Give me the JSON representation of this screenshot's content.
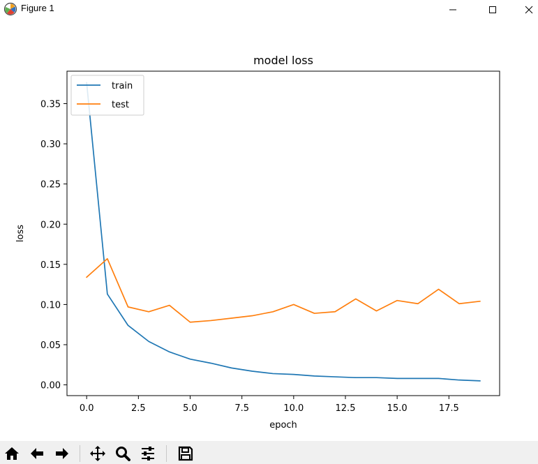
{
  "window": {
    "title": "Figure 1",
    "controls": [
      "minimize",
      "maximize",
      "close"
    ]
  },
  "chart_data": {
    "type": "line",
    "title": "model loss",
    "xlabel": "epoch",
    "ylabel": "loss",
    "xlim": [
      -0.95,
      19.95
    ],
    "ylim": [
      -0.0134,
      0.3904
    ],
    "xticks": [
      0.0,
      2.5,
      5.0,
      7.5,
      10.0,
      12.5,
      15.0,
      17.5
    ],
    "xtick_labels": [
      "0.0",
      "2.5",
      "5.0",
      "7.5",
      "10.0",
      "12.5",
      "15.0",
      "17.5"
    ],
    "yticks": [
      0.0,
      0.05,
      0.1,
      0.15,
      0.2,
      0.25,
      0.3,
      0.35
    ],
    "ytick_labels": [
      "0.00",
      "0.05",
      "0.10",
      "0.15",
      "0.20",
      "0.25",
      "0.30",
      "0.35"
    ],
    "grid": false,
    "legend_position": "upper-left",
    "x": [
      0,
      1,
      2,
      3,
      4,
      5,
      6,
      7,
      8,
      9,
      10,
      11,
      12,
      13,
      14,
      15,
      16,
      17,
      18,
      19
    ],
    "series": [
      {
        "name": "train",
        "color": "#1f77b4",
        "values": [
          0.376,
          0.113,
          0.074,
          0.054,
          0.041,
          0.032,
          0.027,
          0.021,
          0.017,
          0.014,
          0.013,
          0.011,
          0.01,
          0.009,
          0.009,
          0.008,
          0.008,
          0.008,
          0.006,
          0.005
        ]
      },
      {
        "name": "test",
        "color": "#ff7f0e",
        "values": [
          0.134,
          0.157,
          0.097,
          0.091,
          0.099,
          0.078,
          0.08,
          0.083,
          0.086,
          0.091,
          0.1,
          0.089,
          0.091,
          0.107,
          0.092,
          0.105,
          0.101,
          0.119,
          0.101,
          0.104
        ]
      }
    ]
  },
  "toolbar": {
    "buttons": [
      "home-icon",
      "back-icon",
      "forward-icon",
      "pan-icon",
      "zoom-icon",
      "configure-subplots-icon",
      "save-icon"
    ]
  }
}
